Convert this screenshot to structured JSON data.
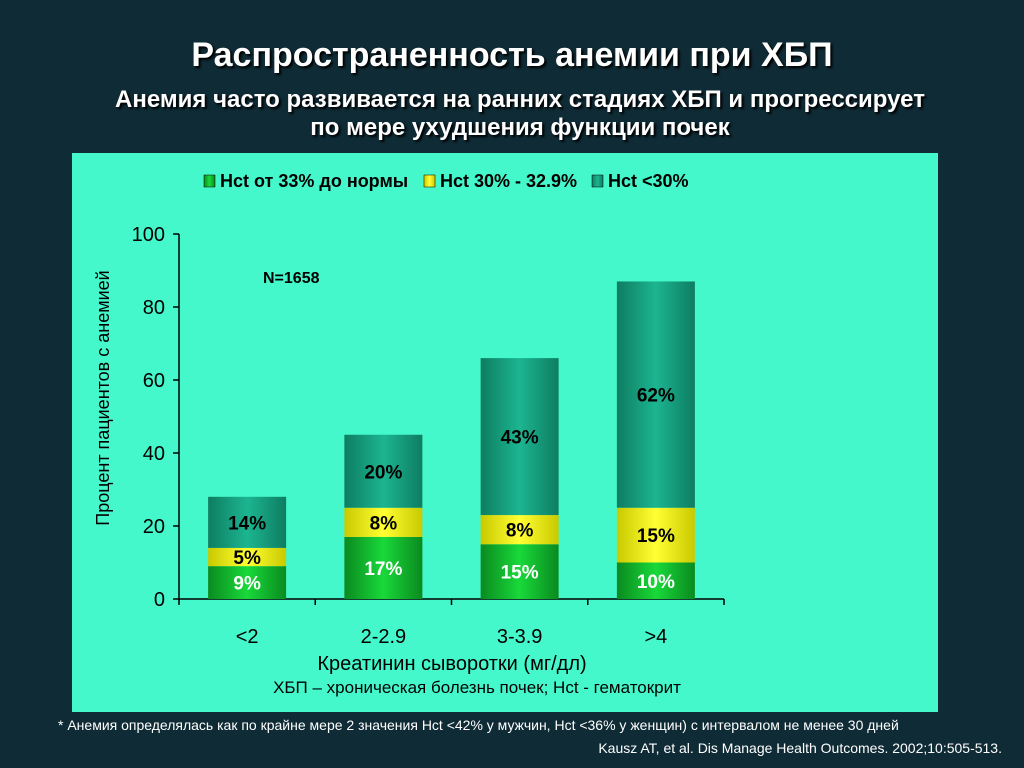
{
  "title": "Распространенность анемии при ХБП",
  "subtitle_line1": "Анемия часто развивается на ранних стадиях ХБП и прогрессирует",
  "subtitle_line2": "по мере ухудшения функции почек",
  "annotation_n": "N=1658",
  "caption": "ХБП – хроническая болезнь почек; Hct - гематокрит",
  "footnote": "* Анемия определялась как по крайне мере 2 значения Hct <42% у мужчин, Hct <36% у женщин) с интервалом не менее 30 дней",
  "citation": "Kausz AT, et al. Dis Manage Health Outcomes. 2002;10:505-513.",
  "chart_data": {
    "type": "bar",
    "stacked": true,
    "categories": [
      "<2",
      "2-2.9",
      "3-3.9",
      ">4"
    ],
    "series": [
      {
        "name": "Hct от 33% до нормы",
        "values": [
          9,
          17,
          15,
          10
        ],
        "labels": [
          "9%",
          "17%",
          "15%",
          "10%"
        ],
        "color": "#0fb52c"
      },
      {
        "name": "Hct 30% - 32.9%",
        "values": [
          5,
          8,
          8,
          15
        ],
        "labels": [
          "5%",
          "8%",
          "8%",
          "15%"
        ],
        "color": "#f2f20a"
      },
      {
        "name": "Hct <30%",
        "values": [
          14,
          20,
          43,
          62
        ],
        "labels": [
          "14%",
          "20%",
          "43%",
          "62%"
        ],
        "color": "#17a17f"
      }
    ],
    "xlabel": "Креатинин сыворотки (мг/дл)",
    "ylabel": "Процент пациентов с анемией",
    "ylim": [
      0,
      100
    ],
    "yticks": [
      0,
      20,
      40,
      60,
      80,
      100
    ],
    "legend_position": "top",
    "grid": false
  }
}
